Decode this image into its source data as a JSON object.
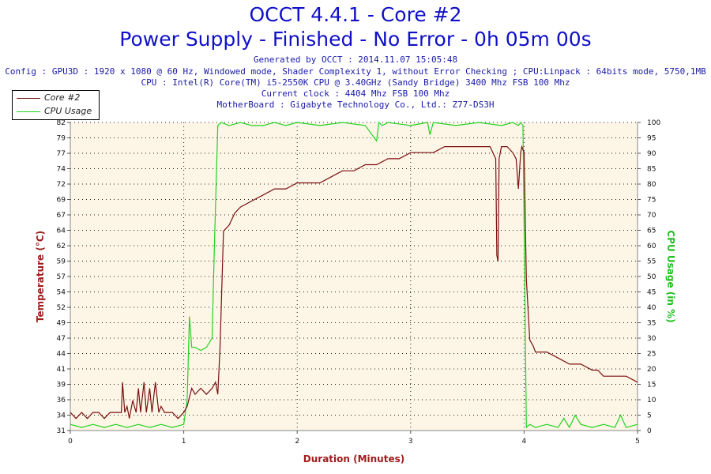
{
  "chart_data": {
    "type": "line",
    "title": "OCCT 4.4.1 - Core #2",
    "subtitle": "Power Supply - Finished - No Error - 0h 05m 00s",
    "info_lines": [
      "Generated by OCCT : 2014.11.07 15:05:48",
      "Config : GPU3D : 1920 x 1080 @ 60 Hz, Windowed mode, Shader Complexity 1, without Error Checking ; CPU:Linpack : 64bits mode, 5750,1MB",
      "CPU : Intel(R) Core(TM) i5-2550K CPU @ 3.40GHz (Sandy Bridge) 3400 Mhz FSB 100 Mhz",
      "Current clock : 4404 Mhz FSB 100 Mhz",
      "MotherBoard : Gigabyte Technology Co., Ltd.: Z77-DS3H"
    ],
    "xlabel": "Duration (Minutes)",
    "ylabel_left": "Temperature (°C)",
    "ylabel_right": "CPU Usage (in %)",
    "xlim": [
      0,
      5
    ],
    "ylim_left": [
      31,
      82
    ],
    "ylim_right": [
      0,
      100
    ],
    "x_ticks": [
      "0",
      "1",
      "2",
      "3",
      "4",
      "5"
    ],
    "y_left_ticks": [
      "31",
      "34",
      "36",
      "39",
      "41",
      "44",
      "47",
      "49",
      "52",
      "54",
      "57",
      "59",
      "62",
      "64",
      "67",
      "69",
      "72",
      "74",
      "77",
      "79",
      "82"
    ],
    "y_right_ticks": [
      "0",
      "5",
      "10",
      "15",
      "20",
      "25",
      "30",
      "35",
      "40",
      "45",
      "50",
      "55",
      "60",
      "65",
      "70",
      "75",
      "80",
      "85",
      "90",
      "95",
      "100"
    ],
    "grid": true,
    "legend_position": "top-left",
    "colors": {
      "plot_bg": "#fdf5e6",
      "core": "#7a1010",
      "cpu": "#21d321",
      "title": "#1010c8",
      "axis_label_left": "#a01c1c",
      "axis_label_right": "#20c020"
    },
    "series": [
      {
        "name": "Core #2",
        "axis": "left",
        "x": [
          0,
          0.05,
          0.1,
          0.15,
          0.2,
          0.25,
          0.3,
          0.35,
          0.4,
          0.45,
          0.46,
          0.48,
          0.5,
          0.52,
          0.55,
          0.58,
          0.6,
          0.62,
          0.65,
          0.67,
          0.7,
          0.72,
          0.75,
          0.78,
          0.8,
          0.83,
          0.86,
          0.9,
          0.95,
          1.0,
          1.03,
          1.07,
          1.1,
          1.15,
          1.2,
          1.25,
          1.28,
          1.3,
          1.32,
          1.35,
          1.4,
          1.45,
          1.5,
          1.6,
          1.7,
          1.8,
          1.9,
          2.0,
          2.1,
          2.2,
          2.3,
          2.4,
          2.5,
          2.6,
          2.7,
          2.8,
          2.9,
          3.0,
          3.1,
          3.2,
          3.3,
          3.4,
          3.5,
          3.6,
          3.7,
          3.75,
          3.76,
          3.77,
          3.78,
          3.8,
          3.85,
          3.9,
          3.93,
          3.95,
          3.97,
          3.98,
          4.0,
          4.02,
          4.05,
          4.08,
          4.1,
          4.2,
          4.3,
          4.4,
          4.5,
          4.6,
          4.65,
          4.7,
          4.8,
          4.9,
          5.0
        ],
        "y": [
          34,
          33,
          34,
          33,
          34,
          34,
          33,
          34,
          34,
          34,
          39,
          34,
          35,
          33,
          36,
          34,
          38,
          34,
          39,
          34,
          38,
          34,
          39,
          34,
          35,
          34,
          34,
          34,
          33,
          34,
          35,
          38,
          37,
          38,
          37,
          38,
          39,
          37,
          45,
          64,
          65,
          67,
          68,
          69,
          70,
          71,
          71,
          72,
          72,
          72,
          73,
          74,
          74,
          75,
          75,
          76,
          76,
          77,
          77,
          77,
          78,
          78,
          78,
          78,
          78,
          76,
          60,
          59,
          76,
          78,
          78,
          77,
          76,
          71,
          77,
          78,
          77,
          56,
          46,
          45,
          44,
          44,
          43,
          42,
          42,
          41,
          41,
          40,
          40,
          40,
          39
        ]
      },
      {
        "name": "CPU Usage",
        "axis": "right",
        "x": [
          0,
          0.1,
          0.2,
          0.3,
          0.4,
          0.5,
          0.6,
          0.7,
          0.8,
          0.9,
          1.0,
          1.03,
          1.05,
          1.07,
          1.1,
          1.15,
          1.2,
          1.25,
          1.27,
          1.3,
          1.33,
          1.4,
          1.5,
          1.6,
          1.7,
          1.8,
          1.9,
          2.0,
          2.2,
          2.4,
          2.6,
          2.7,
          2.72,
          2.75,
          2.8,
          3.0,
          3.15,
          3.17,
          3.2,
          3.4,
          3.6,
          3.8,
          3.9,
          3.95,
          3.97,
          3.99,
          4.02,
          4.05,
          4.1,
          4.2,
          4.3,
          4.35,
          4.4,
          4.45,
          4.5,
          4.6,
          4.7,
          4.8,
          4.85,
          4.9,
          5.0
        ],
        "y": [
          2,
          1,
          2,
          1,
          2,
          1,
          2,
          1,
          2,
          1,
          2,
          10,
          37,
          27,
          27,
          26,
          27,
          30,
          60,
          99,
          100,
          99,
          100,
          99,
          99,
          100,
          99,
          100,
          99,
          100,
          99,
          94,
          100,
          99,
          100,
          99,
          100,
          96,
          100,
          99,
          100,
          99,
          100,
          99,
          100,
          99,
          1,
          2,
          1,
          2,
          1,
          4,
          1,
          5,
          2,
          1,
          2,
          1,
          5,
          1,
          2
        ]
      }
    ]
  }
}
